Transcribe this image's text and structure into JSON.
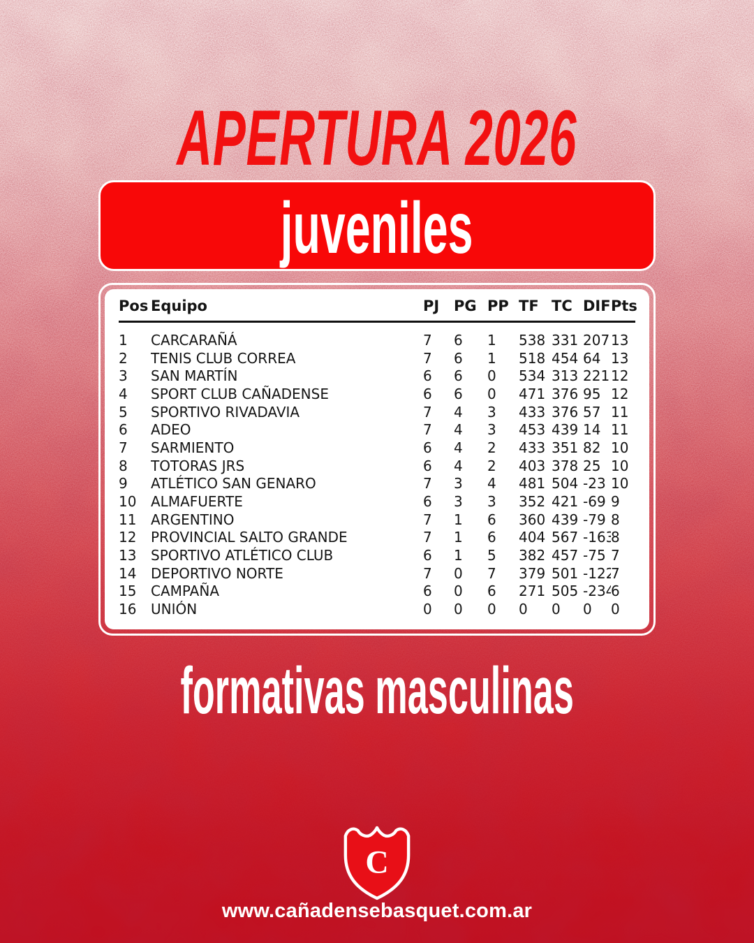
{
  "title": "APERTURA 2026",
  "banner": {
    "label": "juveniles"
  },
  "caption": "formativas masculinas",
  "footer": {
    "website": "www.cañadensebasquet.com.ar",
    "logo_letter": "C"
  },
  "colors": {
    "title_red": "#f21010",
    "banner_red": "#f80808",
    "shield_red": "#e80f17",
    "background_deep_red": "#c01020",
    "table_text": "#141414",
    "white": "#ffffff"
  },
  "chart_data": {
    "type": "table",
    "title": "APERTURA 2026 — juveniles",
    "columns": [
      "Pos",
      "Equipo",
      "PJ",
      "PG",
      "PP",
      "TF",
      "TC",
      "DIF",
      "Pts"
    ],
    "rows": [
      [
        1,
        "CARCARAÑÁ",
        7,
        6,
        1,
        538,
        331,
        207,
        13
      ],
      [
        2,
        "TENIS CLUB CORREA",
        7,
        6,
        1,
        518,
        454,
        64,
        13
      ],
      [
        3,
        "SAN MARTÍN",
        6,
        6,
        0,
        534,
        313,
        221,
        12
      ],
      [
        4,
        "SPORT CLUB CAÑADENSE",
        6,
        6,
        0,
        471,
        376,
        95,
        12
      ],
      [
        5,
        "SPORTIVO RIVADAVIA",
        7,
        4,
        3,
        433,
        376,
        57,
        11
      ],
      [
        6,
        "ADEO",
        7,
        4,
        3,
        453,
        439,
        14,
        11
      ],
      [
        7,
        "SARMIENTO",
        6,
        4,
        2,
        433,
        351,
        82,
        10
      ],
      [
        8,
        "TOTORAS JRS",
        6,
        4,
        2,
        403,
        378,
        25,
        10
      ],
      [
        9,
        "ATLÉTICO SAN GENARO",
        7,
        3,
        4,
        481,
        504,
        -23,
        10
      ],
      [
        10,
        "ALMAFUERTE",
        6,
        3,
        3,
        352,
        421,
        -69,
        9
      ],
      [
        11,
        "ARGENTINO",
        7,
        1,
        6,
        360,
        439,
        -79,
        8
      ],
      [
        12,
        "PROVINCIAL SALTO GRANDE",
        7,
        1,
        6,
        404,
        567,
        -163,
        8
      ],
      [
        13,
        "SPORTIVO ATLÉTICO CLUB",
        6,
        1,
        5,
        382,
        457,
        -75,
        7
      ],
      [
        14,
        "DEPORTIVO NORTE",
        7,
        0,
        7,
        379,
        501,
        -122,
        7
      ],
      [
        15,
        "CAMPAÑA",
        6,
        0,
        6,
        271,
        505,
        -234,
        6
      ],
      [
        16,
        "UNIÓN",
        0,
        0,
        0,
        0,
        0,
        0,
        0
      ]
    ]
  }
}
